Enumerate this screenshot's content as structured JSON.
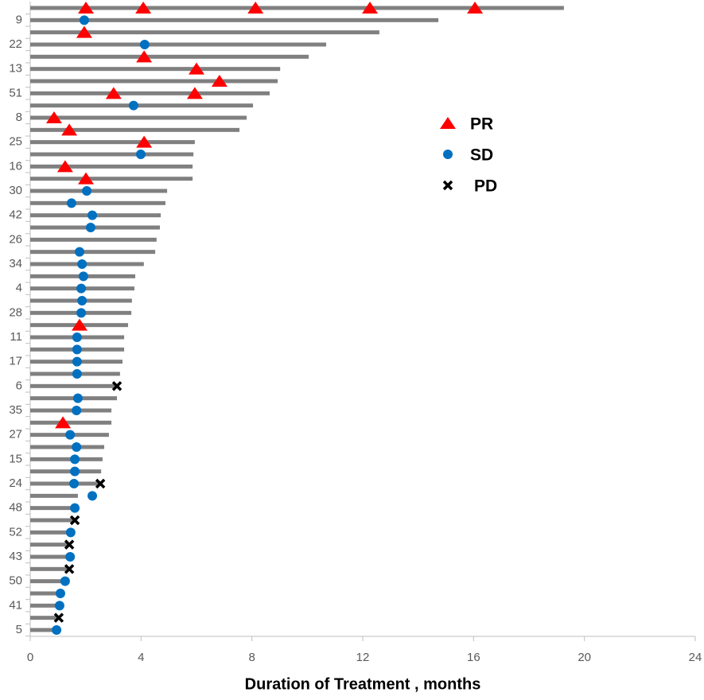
{
  "chart_data": {
    "type": "swimmer",
    "xlabel": "Duration of Treatment , months",
    "categories": [
      null,
      "9",
      null,
      "22",
      null,
      "13",
      null,
      "51",
      null,
      "8",
      null,
      "25",
      null,
      "16",
      null,
      "30",
      null,
      "42",
      null,
      "26",
      null,
      "34",
      null,
      "4",
      null,
      "28",
      null,
      "11",
      null,
      "17",
      null,
      "6",
      null,
      "35",
      null,
      "27",
      null,
      "15",
      null,
      "24",
      null,
      "48",
      null,
      "52",
      null,
      "43",
      null,
      "50",
      null,
      "41",
      null,
      "5"
    ],
    "values": [
      19.26,
      14.73,
      12.6,
      10.68,
      10.05,
      9.02,
      8.93,
      8.64,
      8.04,
      7.81,
      7.55,
      5.94,
      5.89,
      5.86,
      5.86,
      4.94,
      4.88,
      4.71,
      4.68,
      4.56,
      4.51,
      4.1,
      3.79,
      3.76,
      3.67,
      3.65,
      3.53,
      3.39,
      3.39,
      3.33,
      3.24,
      3.16,
      3.13,
      2.93,
      2.93,
      2.84,
      2.67,
      2.61,
      2.56,
      2.5,
      1.72,
      1.67,
      1.61,
      1.52,
      1.46,
      1.44,
      1.38,
      1.29,
      1.15,
      1.12,
      1.03,
      0.92
    ],
    "color": "#808080",
    "series": [
      {
        "name": "PR",
        "color": "#ff0000",
        "marker": "triangle",
        "values": [
          [
            2.01,
            4.08,
            8.13,
            12.26,
            16.05
          ],
          null,
          [
            1.95
          ],
          null,
          [
            4.11
          ],
          [
            6.0
          ],
          [
            6.83
          ],
          [
            3.01,
            5.94
          ],
          null,
          [
            0.86
          ],
          [
            1.41
          ],
          [
            4.11
          ],
          null,
          [
            1.26
          ],
          [
            2.01
          ],
          null,
          null,
          null,
          null,
          null,
          null,
          null,
          null,
          null,
          null,
          null,
          [
            1.78
          ],
          null,
          null,
          null,
          null,
          null,
          null,
          null,
          [
            1.18
          ],
          null,
          null,
          null,
          null,
          null,
          null,
          null,
          null,
          null,
          null,
          null,
          null,
          null,
          null,
          null,
          null,
          null
        ]
      },
      {
        "name": "SD",
        "color": "#0070c0",
        "marker": "circle",
        "values": [
          null,
          [
            1.95
          ],
          null,
          [
            4.13
          ],
          null,
          null,
          null,
          null,
          [
            3.73
          ],
          null,
          null,
          null,
          [
            3.99
          ],
          null,
          null,
          [
            2.04
          ],
          [
            1.49
          ],
          [
            2.24
          ],
          [
            2.18
          ],
          null,
          [
            1.78
          ],
          [
            1.87
          ],
          [
            1.92
          ],
          [
            1.84
          ],
          [
            1.87
          ],
          [
            1.84
          ],
          null,
          [
            1.69
          ],
          [
            1.69
          ],
          [
            1.69
          ],
          [
            1.69
          ],
          null,
          [
            1.72
          ],
          [
            1.67
          ],
          null,
          [
            1.44
          ],
          [
            1.67
          ],
          [
            1.61
          ],
          [
            1.61
          ],
          [
            1.58
          ],
          [
            2.24
          ],
          [
            1.61
          ],
          null,
          [
            1.46
          ],
          null,
          [
            1.44
          ],
          null,
          [
            1.26
          ],
          [
            1.09
          ],
          [
            1.06
          ],
          null,
          [
            0.95
          ]
        ]
      },
      {
        "name": "PD",
        "color": "#000000",
        "marker": "cross",
        "values": [
          null,
          null,
          null,
          null,
          null,
          null,
          null,
          null,
          null,
          null,
          null,
          null,
          null,
          null,
          null,
          null,
          null,
          null,
          null,
          null,
          null,
          null,
          null,
          null,
          null,
          null,
          null,
          null,
          null,
          null,
          null,
          [
            3.13
          ],
          null,
          null,
          null,
          null,
          null,
          null,
          null,
          [
            2.53
          ],
          null,
          null,
          [
            1.61
          ],
          null,
          [
            1.41
          ],
          null,
          [
            1.41
          ],
          null,
          null,
          null,
          [
            1.03
          ],
          null
        ]
      }
    ],
    "xlim": [
      0,
      24
    ],
    "xticks": [
      0,
      4,
      8,
      12,
      16,
      20,
      24
    ],
    "legend": "upper right"
  }
}
